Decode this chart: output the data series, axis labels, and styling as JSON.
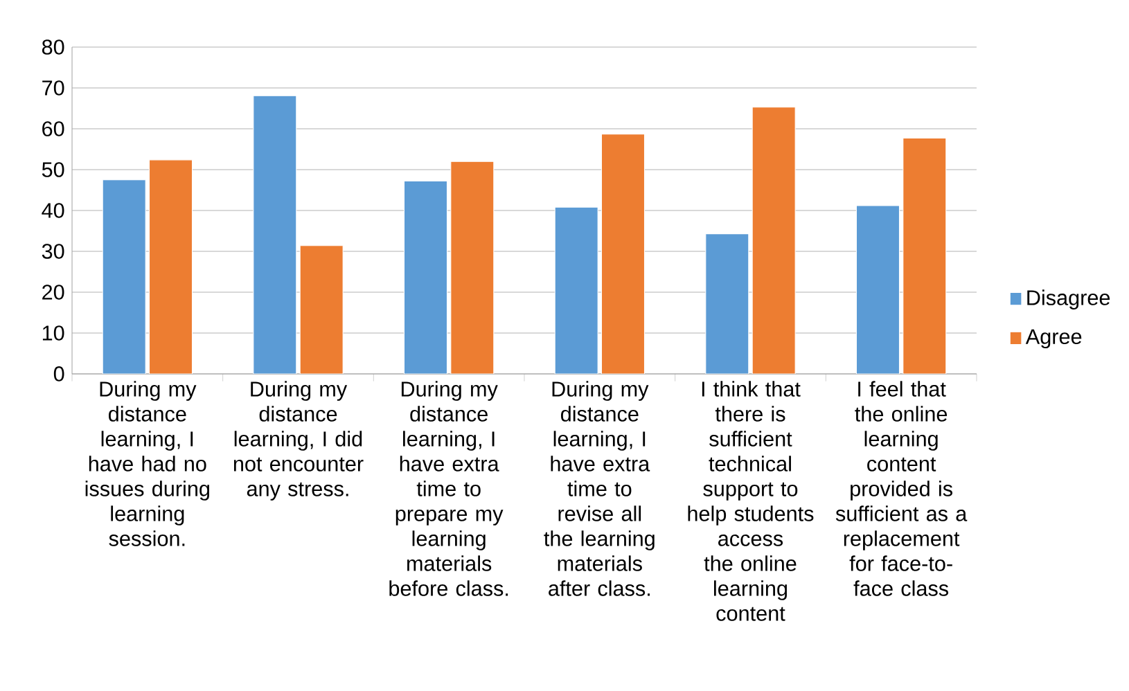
{
  "chart_data": {
    "type": "bar",
    "categories": [
      "During my distance learning, I have had no issues during learning session.",
      "During my distance learning, I did not encounter any stress.",
      "During my distance learning, I have extra time to prepare my learning materials before class.",
      "During my distance learning, I have extra time to revise all the learning materials after class.",
      "I think that there is sufficient technical support to help students access the online learning content",
      "I feel that the online learning content provided is sufficient as a replacement for face-to-face class"
    ],
    "series": [
      {
        "name": "Disagree",
        "color": "#5b9bd5",
        "values": [
          47.5,
          68.1,
          47.2,
          40.8,
          34.3,
          41.2
        ]
      },
      {
        "name": "Agree",
        "color": "#ed7d31",
        "values": [
          52.4,
          31.4,
          52.0,
          58.7,
          65.3,
          57.7
        ]
      }
    ],
    "ylim": [
      0,
      80
    ],
    "yticks": [
      0,
      10,
      20,
      30,
      40,
      50,
      60,
      70,
      80
    ],
    "grid": "y",
    "legend": "right"
  }
}
